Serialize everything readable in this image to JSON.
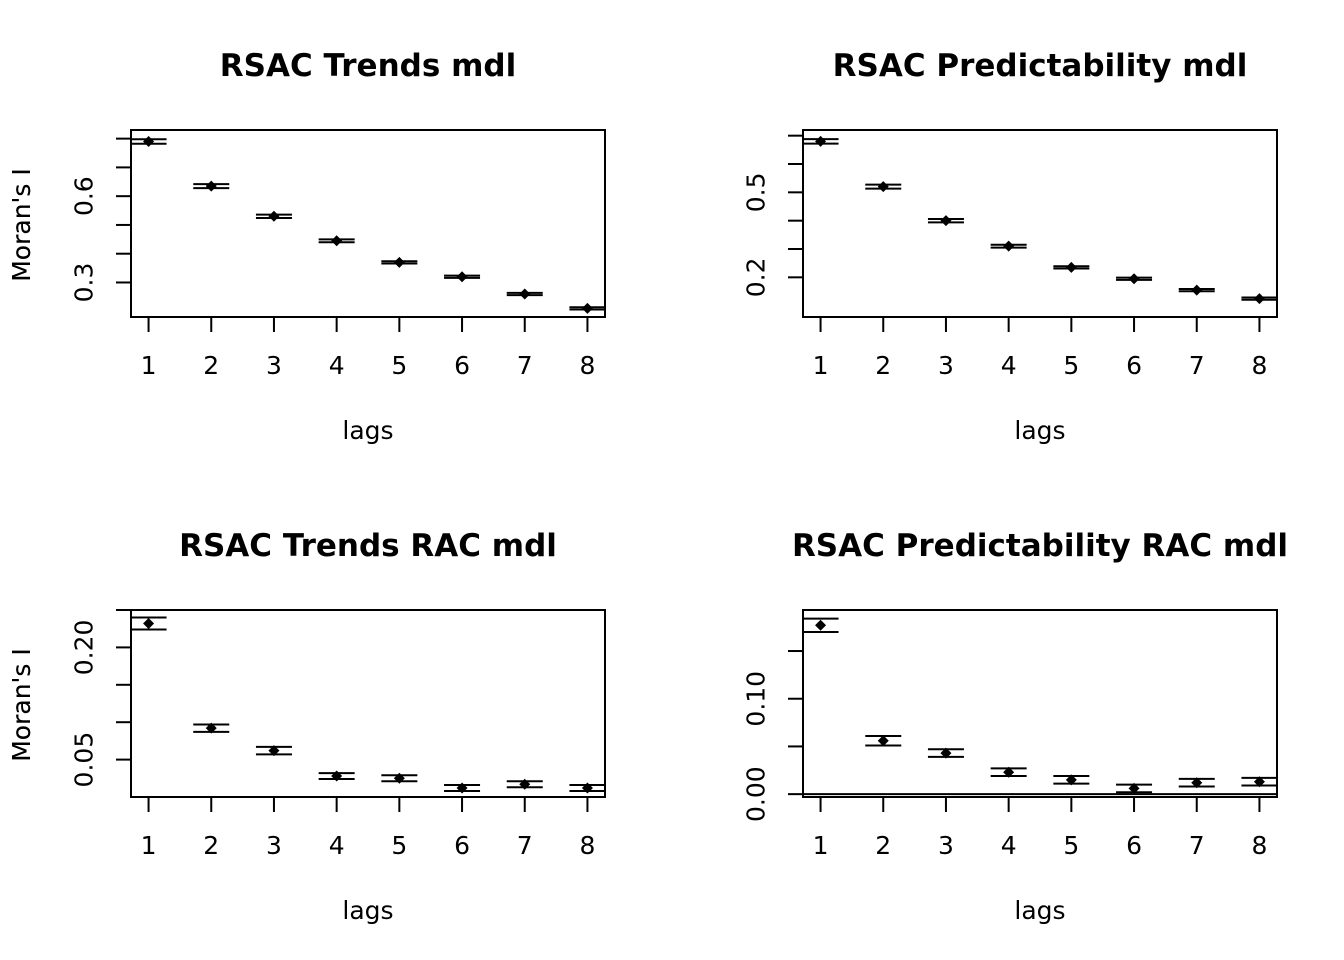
{
  "chart_data": [
    {
      "type": "scatter",
      "title": "RSAC Trends mdl",
      "xlabel": "lags",
      "ylabel": "Moran's  I",
      "x": [
        1,
        2,
        3,
        4,
        5,
        6,
        7,
        8
      ],
      "xticks": [
        "1",
        "2",
        "3",
        "4",
        "5",
        "6",
        "7",
        "8"
      ],
      "xlim": [
        0.72,
        8.28
      ],
      "ylim": [
        0.18,
        0.83
      ],
      "yticks": [
        0.3,
        0.4,
        0.5,
        0.6,
        0.7,
        0.8
      ],
      "yticklabels": [
        "0.3",
        "",
        "",
        "0.6",
        "",
        ""
      ],
      "series": [
        {
          "values": [
            0.79,
            0.635,
            0.53,
            0.445,
            0.37,
            0.32,
            0.26,
            0.21
          ],
          "lower": [
            0.782,
            0.628,
            0.524,
            0.44,
            0.366,
            0.316,
            0.256,
            0.206
          ],
          "upper": [
            0.798,
            0.642,
            0.536,
            0.45,
            0.374,
            0.324,
            0.264,
            0.214
          ]
        }
      ],
      "grid": false
    },
    {
      "type": "scatter",
      "title": "RSAC Predictability mdl",
      "xlabel": "lags",
      "ylabel": "Moran's  I",
      "x": [
        1,
        2,
        3,
        4,
        5,
        6,
        7,
        8
      ],
      "xticks": [
        "1",
        "2",
        "3",
        "4",
        "5",
        "6",
        "7",
        "8"
      ],
      "xlim": [
        0.72,
        8.28
      ],
      "ylim": [
        0.06,
        0.72
      ],
      "yticks": [
        0.2,
        0.3,
        0.4,
        0.5,
        0.6,
        0.7
      ],
      "yticklabels": [
        "0.2",
        "",
        "",
        "0.5",
        "",
        ""
      ],
      "series": [
        {
          "values": [
            0.68,
            0.52,
            0.4,
            0.31,
            0.235,
            0.195,
            0.155,
            0.125
          ],
          "lower": [
            0.672,
            0.513,
            0.394,
            0.305,
            0.231,
            0.191,
            0.151,
            0.121
          ],
          "upper": [
            0.688,
            0.527,
            0.406,
            0.315,
            0.239,
            0.199,
            0.159,
            0.129
          ]
        }
      ],
      "grid": false
    },
    {
      "type": "scatter",
      "title": "RSAC Trends RAC mdl",
      "xlabel": "lags",
      "ylabel": "Moran's  I",
      "x": [
        1,
        2,
        3,
        4,
        5,
        6,
        7,
        8
      ],
      "xticks": [
        "1",
        "2",
        "3",
        "4",
        "5",
        "6",
        "7",
        "8"
      ],
      "xlim": [
        0.72,
        8.28
      ],
      "ylim": [
        0.0,
        0.25
      ],
      "yticks": [
        0.05,
        0.1,
        0.15,
        0.2,
        0.25
      ],
      "yticklabels": [
        "0.05",
        "",
        "",
        "0.20",
        ""
      ],
      "series": [
        {
          "values": [
            0.232,
            0.092,
            0.062,
            0.028,
            0.025,
            0.012,
            0.017,
            0.012
          ],
          "lower": [
            0.224,
            0.087,
            0.057,
            0.024,
            0.021,
            0.008,
            0.013,
            0.008
          ],
          "upper": [
            0.24,
            0.097,
            0.067,
            0.032,
            0.029,
            0.016,
            0.021,
            0.016
          ]
        }
      ],
      "grid": false
    },
    {
      "type": "scatter",
      "title": "RSAC Predictability RAC mdl",
      "xlabel": "lags",
      "ylabel": "Moran's  I",
      "x": [
        1,
        2,
        3,
        4,
        5,
        6,
        7,
        8
      ],
      "xticks": [
        "1",
        "2",
        "3",
        "4",
        "5",
        "6",
        "7",
        "8"
      ],
      "xlim": [
        0.72,
        8.28
      ],
      "ylim": [
        -0.003,
        0.193
      ],
      "yticks": [
        0.0,
        0.05,
        0.1,
        0.15
      ],
      "yticklabels": [
        "0.00",
        "",
        "0.10",
        ""
      ],
      "hline": 0,
      "series": [
        {
          "values": [
            0.177,
            0.056,
            0.043,
            0.023,
            0.015,
            0.006,
            0.012,
            0.013
          ],
          "lower": [
            0.17,
            0.051,
            0.039,
            0.019,
            0.011,
            0.002,
            0.008,
            0.009
          ],
          "upper": [
            0.184,
            0.061,
            0.047,
            0.027,
            0.019,
            0.01,
            0.016,
            0.017
          ]
        }
      ],
      "grid": false
    }
  ]
}
